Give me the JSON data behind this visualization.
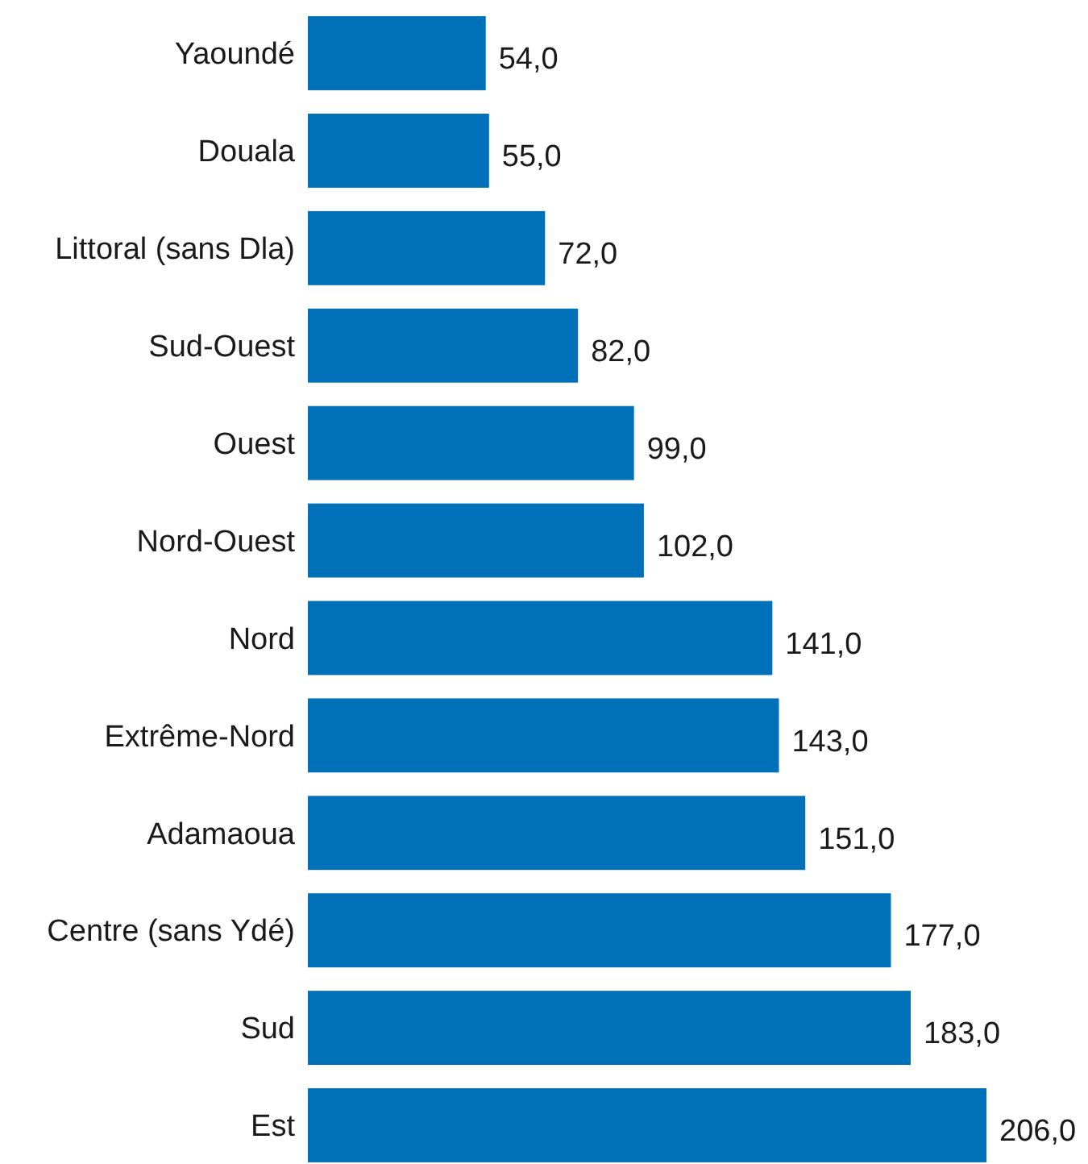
{
  "chart_data": {
    "type": "bar",
    "orientation": "horizontal",
    "categories": [
      "Yaoundé",
      "Douala",
      "Littoral (sans Dla)",
      "Sud-Ouest",
      "Ouest",
      "Nord-Ouest",
      "Nord",
      "Extrême-Nord",
      "Adamaoua",
      "Centre (sans Ydé)",
      "Sud",
      "Est"
    ],
    "values": [
      54,
      55,
      72,
      82,
      99,
      102,
      141,
      143,
      151,
      177,
      183,
      206
    ],
    "value_labels": [
      "54,0",
      "55,0",
      "72,0",
      "82,0",
      "99,0",
      "102,0",
      "141,0",
      "143,0",
      "151,0",
      "177,0",
      "183,0",
      "206,0"
    ],
    "color": "#0070b8"
  }
}
